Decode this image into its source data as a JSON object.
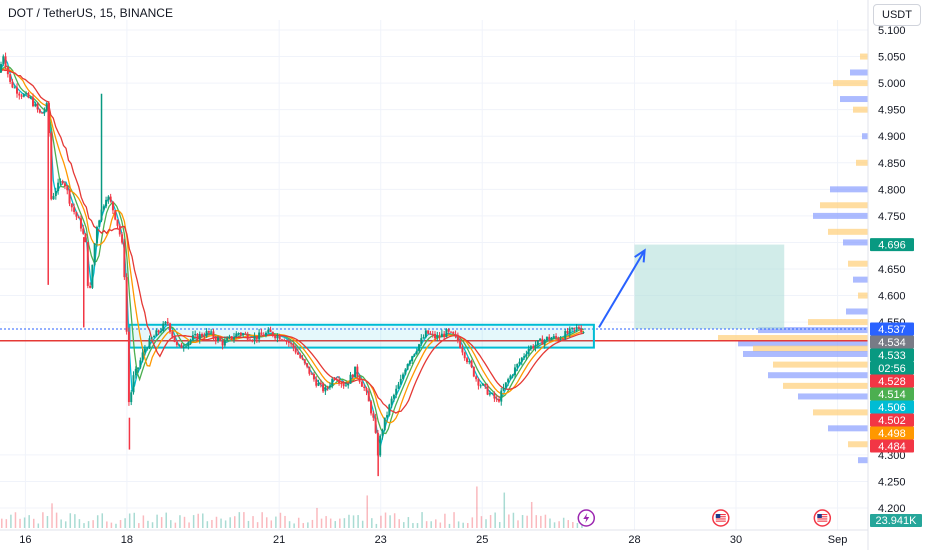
{
  "header": {
    "title": "DOT / TetherUS, 15, BINANCE",
    "unit_button": "USDT"
  },
  "colors": {
    "candle_up": "#089981",
    "candle_down": "#f23645",
    "ma_red": "#e53935",
    "ma_orange": "#ff9800",
    "ma_green": "#4caf50",
    "ma_teal": "#00bcd4",
    "box_border": "#00bcd4",
    "support_line": "#e53935",
    "target_zone": "#b2dfdb",
    "arrow": "#2962ff",
    "vp_yellow": "#ffd180",
    "vp_blue": "#90a4ff"
  },
  "event_icons": [
    "lightning-event-icon",
    "us-flag-event-icon",
    "us-flag-event-icon"
  ],
  "chart_data": {
    "type": "candlestick",
    "symbol": "DOT / TetherUS",
    "interval": "15",
    "exchange": "BINANCE",
    "ylim": [
      4.2,
      5.1
    ],
    "xlim_days": [
      15.5,
      32.6
    ],
    "y_ticks": [
      "5.100",
      "5.050",
      "5.000",
      "4.950",
      "4.900",
      "4.850",
      "4.800",
      "4.750",
      "4.700",
      "4.650",
      "4.600",
      "4.550",
      "4.300",
      "4.250",
      "4.200"
    ],
    "y_tick_values": [
      5.1,
      5.05,
      5.0,
      4.95,
      4.9,
      4.85,
      4.8,
      4.75,
      4.7,
      4.65,
      4.6,
      4.55,
      4.3,
      4.25,
      4.2
    ],
    "x_ticks": [
      {
        "label": "16",
        "day": 16
      },
      {
        "label": "18",
        "day": 18
      },
      {
        "label": "21",
        "day": 21
      },
      {
        "label": "23",
        "day": 23
      },
      {
        "label": "25",
        "day": 25
      },
      {
        "label": "28",
        "day": 28
      },
      {
        "label": "30",
        "day": 30
      },
      {
        "label": "Sep",
        "day": 32
      }
    ],
    "price_path": [
      [
        15.5,
        5.02
      ],
      [
        15.55,
        5.06
      ],
      [
        15.7,
        5.0
      ],
      [
        15.9,
        4.98
      ],
      [
        16.1,
        4.97
      ],
      [
        16.3,
        4.94
      ],
      [
        16.45,
        4.96
      ],
      [
        16.5,
        4.78
      ],
      [
        16.6,
        4.8
      ],
      [
        16.75,
        4.82
      ],
      [
        16.9,
        4.77
      ],
      [
        17.1,
        4.73
      ],
      [
        17.2,
        4.69
      ],
      [
        17.25,
        4.58
      ],
      [
        17.3,
        4.64
      ],
      [
        17.4,
        4.73
      ],
      [
        17.5,
        4.76
      ],
      [
        17.6,
        4.79
      ],
      [
        17.7,
        4.77
      ],
      [
        17.8,
        4.74
      ],
      [
        17.9,
        4.7
      ],
      [
        17.95,
        4.64
      ],
      [
        18.0,
        4.52
      ],
      [
        18.05,
        4.37
      ],
      [
        18.1,
        4.44
      ],
      [
        18.2,
        4.46
      ],
      [
        18.35,
        4.5
      ],
      [
        18.5,
        4.52
      ],
      [
        18.8,
        4.55
      ],
      [
        19.0,
        4.5
      ],
      [
        19.3,
        4.52
      ],
      [
        19.6,
        4.53
      ],
      [
        19.9,
        4.51
      ],
      [
        20.2,
        4.53
      ],
      [
        20.5,
        4.52
      ],
      [
        20.8,
        4.53
      ],
      [
        21.1,
        4.52
      ],
      [
        21.3,
        4.5
      ],
      [
        21.5,
        4.47
      ],
      [
        21.7,
        4.44
      ],
      [
        21.9,
        4.42
      ],
      [
        22.1,
        4.45
      ],
      [
        22.3,
        4.43
      ],
      [
        22.5,
        4.46
      ],
      [
        22.7,
        4.42
      ],
      [
        22.85,
        4.37
      ],
      [
        22.95,
        4.3
      ],
      [
        23.0,
        4.34
      ],
      [
        23.2,
        4.4
      ],
      [
        23.4,
        4.44
      ],
      [
        23.5,
        4.47
      ],
      [
        23.7,
        4.5
      ],
      [
        23.9,
        4.53
      ],
      [
        24.1,
        4.52
      ],
      [
        24.3,
        4.53
      ],
      [
        24.5,
        4.52
      ],
      [
        24.7,
        4.48
      ],
      [
        24.9,
        4.44
      ],
      [
        25.1,
        4.42
      ],
      [
        25.3,
        4.4
      ],
      [
        25.5,
        4.44
      ],
      [
        25.7,
        4.47
      ],
      [
        25.9,
        4.5
      ],
      [
        26.1,
        4.51
      ],
      [
        26.3,
        4.52
      ],
      [
        26.5,
        4.52
      ],
      [
        26.7,
        4.53
      ],
      [
        26.9,
        4.54
      ],
      [
        27.0,
        4.533
      ]
    ],
    "spikes": [
      {
        "day": 16.45,
        "low": 4.62
      },
      {
        "day": 17.15,
        "low": 4.54
      },
      {
        "day": 17.5,
        "high": 4.98
      },
      {
        "day": 18.05,
        "low": 4.31
      },
      {
        "day": 22.95,
        "low": 4.26
      }
    ],
    "moving_averages": [
      {
        "color_key": "ma_teal",
        "offset": 0.1
      },
      {
        "color_key": "ma_green",
        "offset": 0.25
      },
      {
        "color_key": "ma_orange",
        "offset": 0.45
      },
      {
        "color_key": "ma_red",
        "offset": 0.7
      }
    ],
    "consolidation_box": {
      "x0_day": 18.05,
      "x1_day": 27.2,
      "y_top": 4.545,
      "y_bottom": 4.502
    },
    "target_zone": {
      "x0_day": 28.0,
      "x1_day": 30.95,
      "y_top": 4.696,
      "y_bottom": 4.537
    },
    "arrow": {
      "from_day": 27.3,
      "from_price": 4.54,
      "to_day": 28.2,
      "to_price": 4.685
    },
    "support_level": 4.515,
    "price_labels": [
      {
        "text": "4.696",
        "value": 4.696,
        "color": "#089981"
      },
      {
        "text": "4.537",
        "value": 4.537,
        "color": "#2962ff"
      },
      {
        "text": "4.534",
        "value": 4.534,
        "color": "#787b86"
      },
      {
        "text": "4.533",
        "value": 4.533,
        "color": "#089981"
      },
      {
        "text": "02:56",
        "value": 4.533,
        "color": "#089981",
        "sub": true
      },
      {
        "text": "4.528",
        "value": 4.528,
        "color": "#f23645"
      },
      {
        "text": "4.514",
        "value": 4.514,
        "color": "#4caf50"
      },
      {
        "text": "4.506",
        "value": 4.506,
        "color": "#00bcd4"
      },
      {
        "text": "4.502",
        "value": 4.502,
        "color": "#f23645"
      },
      {
        "text": "4.498",
        "value": 4.498,
        "color": "#ff9800"
      },
      {
        "text": "4.484",
        "value": 4.484,
        "color": "#f23645"
      }
    ],
    "volume_label": "23.941K",
    "volume_profile": [
      [
        5.05,
        8
      ],
      [
        5.02,
        18
      ],
      [
        5.0,
        35
      ],
      [
        4.97,
        28
      ],
      [
        4.95,
        15
      ],
      [
        4.9,
        6
      ],
      [
        4.85,
        12
      ],
      [
        4.8,
        38
      ],
      [
        4.77,
        48
      ],
      [
        4.75,
        55
      ],
      [
        4.72,
        40
      ],
      [
        4.7,
        25
      ],
      [
        4.66,
        20
      ],
      [
        4.63,
        15
      ],
      [
        4.6,
        10
      ],
      [
        4.57,
        22
      ],
      [
        4.55,
        60
      ],
      [
        4.535,
        110
      ],
      [
        4.52,
        150
      ],
      [
        4.51,
        130
      ],
      [
        4.5,
        115
      ],
      [
        4.49,
        125
      ],
      [
        4.47,
        95
      ],
      [
        4.45,
        100
      ],
      [
        4.43,
        85
      ],
      [
        4.41,
        70
      ],
      [
        4.38,
        55
      ],
      [
        4.35,
        40
      ],
      [
        4.32,
        20
      ],
      [
        4.29,
        10
      ]
    ]
  }
}
